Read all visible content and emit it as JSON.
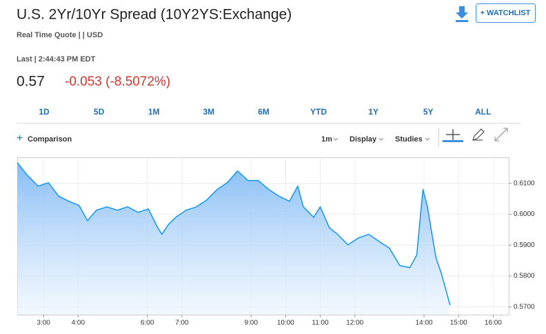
{
  "header": {
    "title": "U.S. 2Yr/10Yr Spread (10Y2YS:Exchange)",
    "subtitle": "Real Time Quote | | USD",
    "last_time": "Last | 2:44:43 PM EDT",
    "price": "0.57",
    "change": "-0.053 (-8.5072%)",
    "watchlist": "+ WATCHLIST"
  },
  "ranges": [
    "1D",
    "5D",
    "1M",
    "3M",
    "6M",
    "YTD",
    "1Y",
    "5Y",
    "ALL"
  ],
  "toolbar": {
    "comparison": "Comparison",
    "interval": "1m",
    "display": "Display",
    "studies": "Studies"
  },
  "chart_data": {
    "type": "area",
    "color": "#1a9af0",
    "x": [
      2.24,
      2.54,
      2.84,
      3.14,
      3.44,
      3.73,
      4.03,
      4.27,
      4.53,
      4.83,
      5.13,
      5.43,
      5.73,
      6.03,
      6.28,
      6.42,
      6.62,
      6.82,
      7.12,
      7.42,
      7.72,
      8.02,
      8.31,
      8.61,
      8.91,
      9.21,
      9.51,
      9.81,
      10.11,
      10.35,
      10.51,
      10.81,
      11.0,
      11.26,
      11.5,
      11.8,
      12.1,
      12.4,
      12.7,
      13.0,
      13.3,
      13.59,
      13.79,
      13.9,
      13.97,
      14.1,
      14.23,
      14.35,
      14.49,
      14.63,
      14.75
    ],
    "values": [
      0.6167,
      0.6125,
      0.6091,
      0.6102,
      0.6058,
      0.6042,
      0.6028,
      0.5979,
      0.6013,
      0.6024,
      0.6013,
      0.6024,
      0.6006,
      0.6017,
      0.5961,
      0.5935,
      0.5968,
      0.599,
      0.6013,
      0.6024,
      0.6046,
      0.608,
      0.6102,
      0.614,
      0.6109,
      0.6109,
      0.608,
      0.6058,
      0.6042,
      0.6091,
      0.6024,
      0.599,
      0.6024,
      0.5957,
      0.5935,
      0.5901,
      0.5923,
      0.5935,
      0.5912,
      0.589,
      0.5834,
      0.5827,
      0.5868,
      0.6002,
      0.608,
      0.6024,
      0.5935,
      0.5857,
      0.5812,
      0.5756,
      0.5706
    ],
    "xlim": [
      2.24,
      16.45
    ],
    "ylim": [
      0.5675,
      0.6184
    ],
    "xticks": [
      {
        "value": 3,
        "label": "3:00"
      },
      {
        "value": 4,
        "label": "4:00"
      },
      {
        "value": 6,
        "label": "6:00"
      },
      {
        "value": 7,
        "label": "7:00"
      },
      {
        "value": 9,
        "label": "9:00"
      },
      {
        "value": 10,
        "label": "10:00"
      },
      {
        "value": 11,
        "label": "11:00"
      },
      {
        "value": 12,
        "label": "12:00"
      },
      {
        "value": 14,
        "label": "14:00"
      },
      {
        "value": 15,
        "label": "15:00"
      },
      {
        "value": 16,
        "label": "16:00"
      }
    ],
    "yticks": [
      {
        "value": 0.57,
        "label": "0.5700"
      },
      {
        "value": 0.58,
        "label": "0.5800"
      },
      {
        "value": 0.59,
        "label": "0.5900"
      },
      {
        "value": 0.6,
        "label": "0.6000"
      },
      {
        "value": 0.61,
        "label": "0.6100"
      }
    ],
    "grid": true
  }
}
